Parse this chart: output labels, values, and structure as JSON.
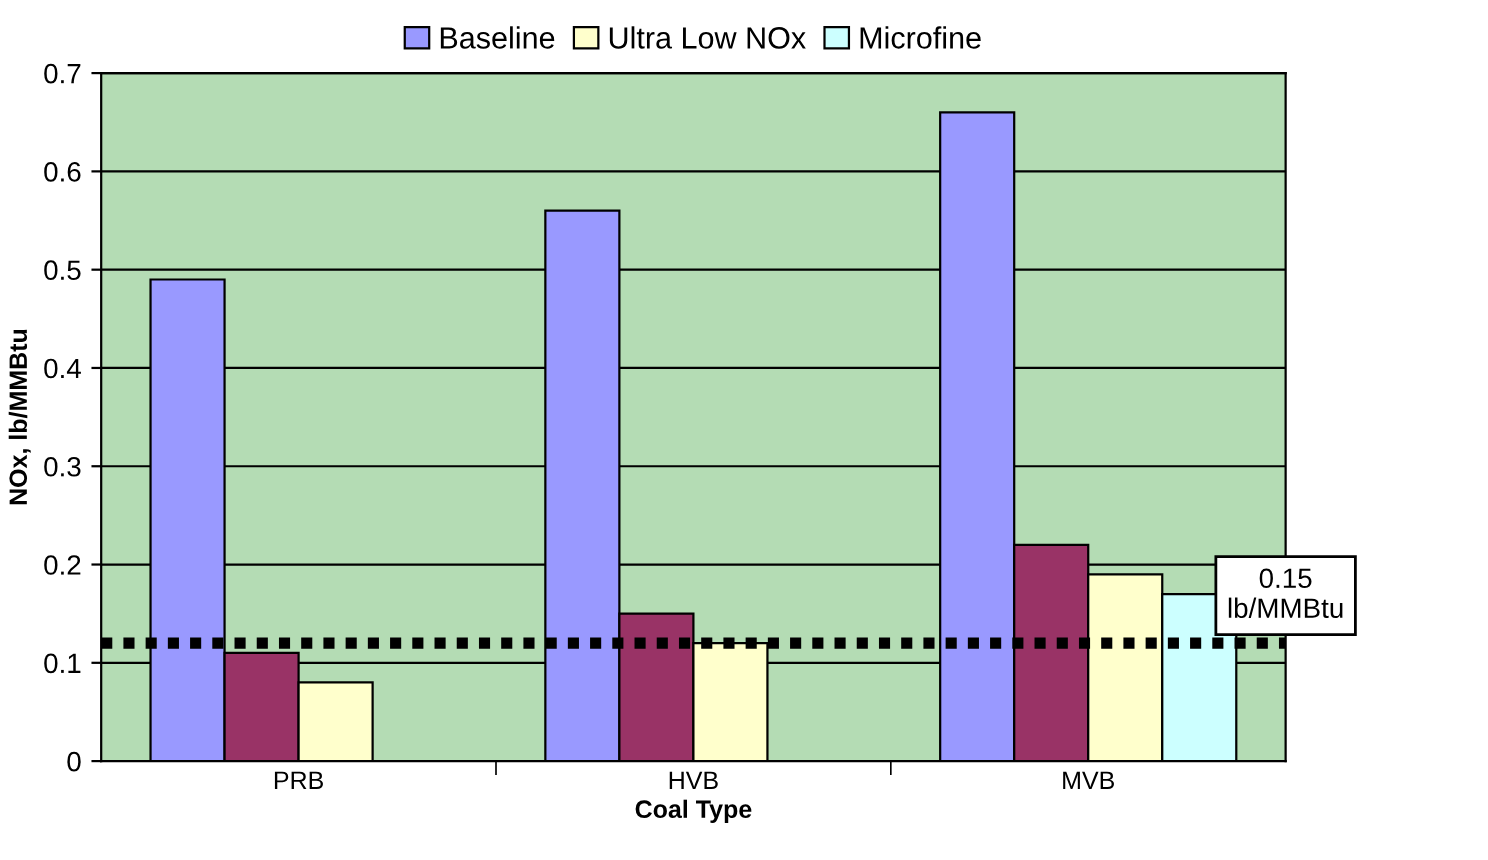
{
  "chart_data": {
    "type": "bar",
    "xlabel": "Coal Type",
    "ylabel": "NOx, lb/MMBtu",
    "categories": [
      "PRB",
      "HVB",
      "MVB"
    ],
    "series": [
      {
        "name": "Baseline",
        "color": "#9999ff",
        "values": [
          0.49,
          0.56,
          0.66
        ]
      },
      {
        "color": "#993366",
        "values": [
          0.11,
          0.15,
          0.22
        ]
      },
      {
        "name": "Ultra Low NOx",
        "color": "#ffffcc",
        "values": [
          0.08,
          0.12,
          0.19
        ]
      },
      {
        "name": "Microfine",
        "color": "#ccffff",
        "values": [
          null,
          null,
          0.17
        ]
      }
    ],
    "ylim": [
      0,
      0.7
    ],
    "yticks": [
      0,
      0.1,
      0.2,
      0.3,
      0.4,
      0.5,
      0.6,
      0.7
    ],
    "grid": "y",
    "legend": "top",
    "ref_lines": [
      {
        "axis": "y",
        "value": 0.12,
        "label": "0.15\nlb/MMBtu",
        "color": "#000000",
        "line_style": "dotted"
      }
    ]
  }
}
